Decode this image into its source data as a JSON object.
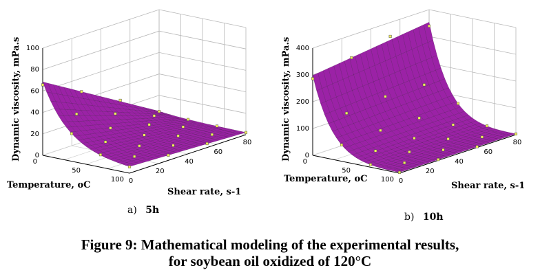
{
  "chart_data": [
    {
      "type": "surface",
      "panel": "a",
      "subtitle_letter": "a)",
      "subtitle_time": "5h",
      "zlabel": "Dynamic viscosity, mPa.s",
      "xlabel": "Shear rate, s-1",
      "ylabel": "Temperature, oC",
      "zticks": [
        "0",
        "20",
        "40",
        "60",
        "80",
        "100"
      ],
      "xticks": [
        "0",
        "20",
        "40",
        "60",
        "80"
      ],
      "yticks": [
        "0",
        "50",
        "100"
      ],
      "zlim": [
        0,
        100
      ],
      "surface_color": "#9b22a6",
      "marker_color": "#f2ee5a",
      "corner_values": {
        "low_shear_low_temp": 67,
        "high_shear_low_temp": 3,
        "low_shear_high_temp": 2,
        "high_shear_high_temp": 1
      }
    },
    {
      "type": "surface",
      "panel": "b",
      "subtitle_letter": "b)",
      "subtitle_time": "10h",
      "zlabel": "Dynamic viscosity, mPa.s",
      "xlabel": "Shear rate, s-1",
      "ylabel": "Temperature, oC",
      "zticks": [
        "0",
        "100",
        "200",
        "300",
        "400"
      ],
      "xticks": [
        "0",
        "20",
        "40",
        "60",
        "80"
      ],
      "yticks": [
        "0",
        "50",
        "100"
      ],
      "zlim": [
        0,
        400
      ],
      "surface_color": "#9b22a6",
      "marker_color": "#f2ee5a",
      "corner_values": {
        "low_shear_low_temp": 295,
        "high_shear_low_temp": 350,
        "low_shear_high_temp": 5,
        "high_shear_high_temp": 3
      }
    }
  ],
  "caption": {
    "line1": "Figure 9: Mathematical modeling of the experimental results,",
    "line2": "for soybean oil oxidized of 120°C"
  }
}
